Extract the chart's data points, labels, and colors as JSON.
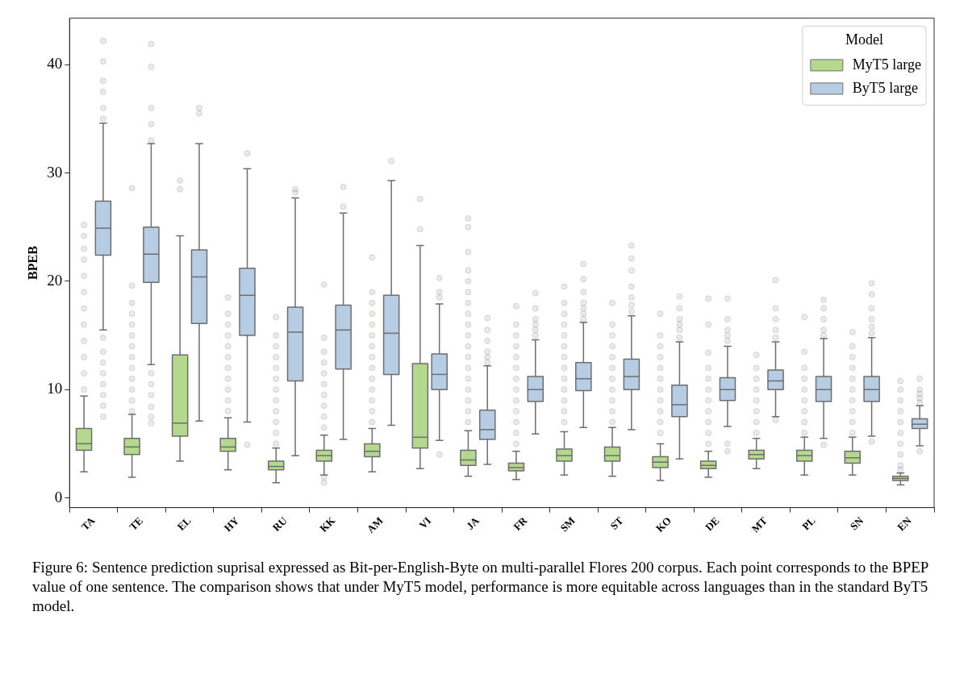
{
  "chart_data": {
    "type": "box",
    "ylabel": "BPEB",
    "legend_title": "Model",
    "legend": "top right",
    "grid": false,
    "ylim": [
      -0.9,
      44.3
    ],
    "yticks": [
      0,
      10,
      20,
      30,
      40
    ],
    "categories": [
      "TA",
      "TE",
      "EL",
      "HY",
      "RU",
      "KK",
      "AM",
      "VI",
      "JA",
      "FR",
      "SM",
      "ST",
      "KO",
      "DE",
      "MT",
      "PL",
      "SN",
      "EN"
    ],
    "series": [
      {
        "name": "MyT5 large",
        "color": "#b3d88e",
        "boxes": [
          {
            "low": 2.4,
            "q1": 4.4,
            "median": 5.0,
            "q3": 6.4,
            "high": 9.4,
            "outliers": [
              10,
              11.5,
              13,
              14.5,
              16,
              17.5,
              19,
              20.5,
              22,
              23,
              24.2,
              25.2
            ]
          },
          {
            "low": 1.9,
            "q1": 4.0,
            "median": 4.7,
            "q3": 5.5,
            "high": 7.7,
            "outliers": [
              8,
              9,
              10,
              11,
              12,
              13,
              14,
              15,
              16,
              17,
              18,
              19.6,
              28.6
            ]
          },
          {
            "low": 3.4,
            "q1": 5.7,
            "median": 6.9,
            "q3": 13.2,
            "high": 24.2,
            "outliers": [
              28.5,
              29.3
            ]
          },
          {
            "low": 2.6,
            "q1": 4.3,
            "median": 4.7,
            "q3": 5.5,
            "high": 7.4,
            "outliers": [
              8,
              9,
              10,
              11,
              12,
              13,
              14,
              15,
              16,
              17,
              18.5
            ]
          },
          {
            "low": 1.4,
            "q1": 2.6,
            "median": 2.9,
            "q3": 3.4,
            "high": 4.6,
            "outliers": [
              5,
              6,
              7,
              8,
              9,
              10,
              11,
              12,
              13,
              14,
              15,
              16.7
            ]
          },
          {
            "low": 2.1,
            "q1": 3.4,
            "median": 3.9,
            "q3": 4.4,
            "high": 5.8,
            "outliers": [
              1.4,
              1.9,
              6.5,
              7.5,
              8.5,
              9.5,
              10.5,
              11.5,
              12.5,
              13.5,
              14.8,
              19.7
            ]
          },
          {
            "low": 2.4,
            "q1": 3.8,
            "median": 4.3,
            "q3": 5.0,
            "high": 6.4,
            "outliers": [
              7,
              8,
              9,
              10,
              11,
              12,
              13,
              14,
              15,
              16,
              17,
              18,
              19,
              22.2
            ]
          },
          {
            "low": 2.7,
            "q1": 4.6,
            "median": 5.6,
            "q3": 12.4,
            "high": 23.3,
            "outliers": [
              24.8,
              27.6
            ]
          },
          {
            "low": 2.0,
            "q1": 3.0,
            "median": 3.5,
            "q3": 4.4,
            "high": 6.2,
            "outliers": [
              7,
              8,
              9,
              10,
              11,
              12,
              13,
              14,
              15,
              16,
              17,
              18,
              19,
              20,
              21,
              22.7,
              25,
              25.8
            ]
          },
          {
            "low": 1.7,
            "q1": 2.5,
            "median": 2.8,
            "q3": 3.2,
            "high": 4.3,
            "outliers": [
              5,
              6,
              7,
              8,
              9,
              10,
              11,
              12,
              13,
              14,
              15,
              16,
              17.7
            ]
          },
          {
            "low": 2.1,
            "q1": 3.4,
            "median": 3.9,
            "q3": 4.5,
            "high": 6.1,
            "outliers": [
              7,
              8,
              9,
              10,
              11,
              12,
              13,
              14,
              15,
              16,
              17,
              18,
              19.5
            ]
          },
          {
            "low": 2.0,
            "q1": 3.4,
            "median": 3.9,
            "q3": 4.7,
            "high": 6.5,
            "outliers": [
              7,
              8,
              9,
              10,
              11,
              12,
              13,
              14,
              15,
              16,
              18
            ]
          },
          {
            "low": 1.6,
            "q1": 2.8,
            "median": 3.3,
            "q3": 3.8,
            "high": 5.0,
            "outliers": [
              6,
              7,
              8,
              9,
              10,
              11,
              12,
              13,
              14,
              15,
              17
            ]
          },
          {
            "low": 1.9,
            "q1": 2.7,
            "median": 3.0,
            "q3": 3.4,
            "high": 4.3,
            "outliers": [
              5,
              6,
              7,
              8,
              9,
              10,
              11,
              12,
              13.4,
              16,
              18.4
            ]
          },
          {
            "low": 2.7,
            "q1": 3.6,
            "median": 4.0,
            "q3": 4.4,
            "high": 5.5,
            "outliers": [
              6,
              7,
              8,
              9,
              10,
              11,
              12,
              13.2
            ]
          },
          {
            "low": 2.1,
            "q1": 3.4,
            "median": 3.9,
            "q3": 4.4,
            "high": 5.6,
            "outliers": [
              6,
              7,
              8,
              9,
              10,
              11,
              12,
              13.5,
              16.7
            ]
          },
          {
            "low": 2.1,
            "q1": 3.2,
            "median": 3.7,
            "q3": 4.3,
            "high": 5.6,
            "outliers": [
              6,
              7,
              8,
              9,
              10,
              11,
              12,
              13,
              14,
              15.3
            ]
          },
          {
            "low": 1.2,
            "q1": 1.6,
            "median": 1.8,
            "q3": 2.0,
            "high": 2.3,
            "outliers": [
              2.6,
              3,
              4,
              5,
              6,
              7,
              8,
              9,
              10,
              10.8
            ]
          }
        ]
      },
      {
        "name": "ByT5 large",
        "color": "#b7cde3",
        "boxes": [
          {
            "low": 15.5,
            "q1": 22.4,
            "median": 24.9,
            "q3": 27.4,
            "high": 34.6,
            "outliers": [
              7.5,
              8.5,
              9.5,
              10.5,
              11.5,
              12.5,
              13.5,
              14.8,
              35,
              36,
              37.5,
              38.5,
              40.3,
              42.2
            ]
          },
          {
            "low": 12.3,
            "q1": 19.9,
            "median": 22.5,
            "q3": 25.0,
            "high": 32.7,
            "outliers": [
              6.9,
              7.5,
              8.4,
              9.5,
              10.5,
              11.5,
              33,
              34.5,
              36,
              39.8,
              41.9
            ]
          },
          {
            "low": 7.1,
            "q1": 16.1,
            "median": 20.4,
            "q3": 22.9,
            "high": 32.7,
            "outliers": [
              35.5,
              36.0
            ]
          },
          {
            "low": 7.0,
            "q1": 15.0,
            "median": 18.7,
            "q3": 21.2,
            "high": 30.4,
            "outliers": [
              4.9,
              31.8
            ]
          },
          {
            "low": 3.9,
            "q1": 10.8,
            "median": 15.3,
            "q3": 17.6,
            "high": 27.7,
            "outliers": [
              28.2,
              28.5
            ]
          },
          {
            "low": 5.4,
            "q1": 11.9,
            "median": 15.5,
            "q3": 17.8,
            "high": 26.3,
            "outliers": [
              26.9,
              28.7
            ]
          },
          {
            "low": 6.7,
            "q1": 11.4,
            "median": 15.2,
            "q3": 18.7,
            "high": 29.3,
            "outliers": [
              31.1
            ]
          },
          {
            "low": 5.3,
            "q1": 10.0,
            "median": 11.4,
            "q3": 13.3,
            "high": 17.9,
            "outliers": [
              4.0,
              18.5,
              19.0,
              20.3
            ]
          },
          {
            "low": 3.1,
            "q1": 5.4,
            "median": 6.3,
            "q3": 8.1,
            "high": 12.2,
            "outliers": [
              12.5,
              13,
              13.5,
              14.5,
              15.5,
              16.6
            ]
          },
          {
            "low": 5.9,
            "q1": 8.9,
            "median": 10.0,
            "q3": 11.2,
            "high": 14.6,
            "outliers": [
              15,
              15.5,
              16,
              16.5,
              17.5,
              18.9
            ]
          },
          {
            "low": 6.5,
            "q1": 9.9,
            "median": 11.0,
            "q3": 12.5,
            "high": 16.2,
            "outliers": [
              16.5,
              17,
              17.5,
              18,
              19,
              20.2,
              21.6
            ]
          },
          {
            "low": 6.3,
            "q1": 10.0,
            "median": 11.2,
            "q3": 12.8,
            "high": 16.8,
            "outliers": [
              17.2,
              17.8,
              18.5,
              19.5,
              21,
              22.1,
              23.3
            ]
          },
          {
            "low": 3.6,
            "q1": 7.5,
            "median": 8.6,
            "q3": 10.4,
            "high": 14.4,
            "outliers": [
              14.8,
              15.5,
              16,
              16.5,
              17.5,
              18.6
            ]
          },
          {
            "low": 6.6,
            "q1": 9.0,
            "median": 10.0,
            "q3": 11.1,
            "high": 14.0,
            "outliers": [
              4.3,
              5.0,
              14.5,
              15,
              15.5,
              16.5,
              18.4
            ]
          },
          {
            "low": 7.5,
            "q1": 10.0,
            "median": 10.8,
            "q3": 11.8,
            "high": 14.4,
            "outliers": [
              7.2,
              14.8,
              15.5,
              16.5,
              17.5,
              20.1
            ]
          },
          {
            "low": 5.5,
            "q1": 8.9,
            "median": 10.0,
            "q3": 11.2,
            "high": 14.7,
            "outliers": [
              4.9,
              15,
              15.5,
              16.5,
              17.5,
              18.3
            ]
          },
          {
            "low": 5.7,
            "q1": 8.9,
            "median": 10.0,
            "q3": 11.2,
            "high": 14.8,
            "outliers": [
              5.2,
              15.2,
              15.8,
              16.5,
              17.5,
              18.8,
              19.8
            ]
          },
          {
            "low": 4.8,
            "q1": 6.4,
            "median": 6.8,
            "q3": 7.3,
            "high": 8.5,
            "outliers": [
              4.3,
              8.8,
              9.2,
              9.6,
              10,
              11
            ]
          }
        ]
      }
    ],
    "annotations": [
      "Figure 6: Sentence prediction suprisal expressed as Bit-per-English-Byte on multi-parallel Flores 200 corpus. Each point corresponds to the BPEP value of one sentence. The comparison shows that under MyT5 model, performance is more equitable across languages than in the standard ByT5 model."
    ]
  }
}
